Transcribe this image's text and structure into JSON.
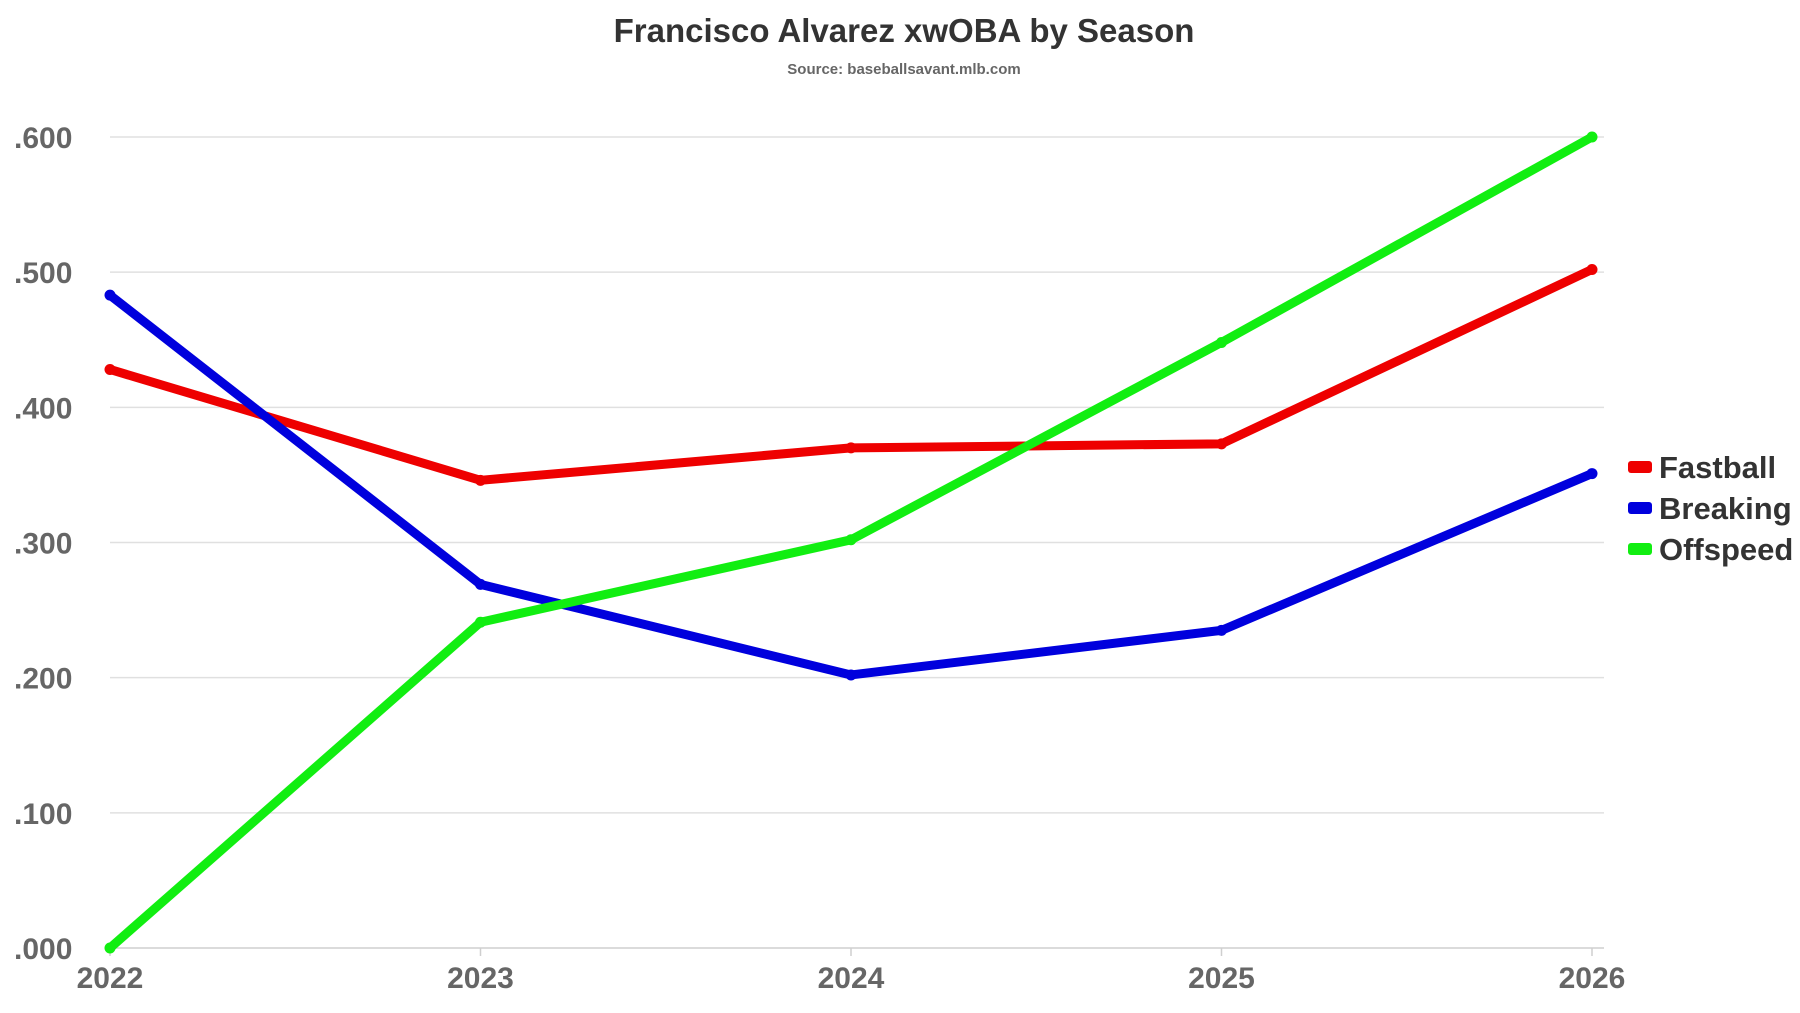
{
  "chart_data": {
    "type": "line",
    "title": "Francisco Alvarez xwOBA by Season",
    "subtitle": "Source: baseballsavant.mlb.com",
    "xlabel": "",
    "ylabel": "",
    "categories": [
      "2022",
      "2023",
      "2024",
      "2025",
      "2026"
    ],
    "ylim": [
      0,
      0.6
    ],
    "yticks": [
      0,
      0.1,
      0.2,
      0.3,
      0.4,
      0.5,
      0.6
    ],
    "ytick_labels": [
      ".000",
      ".100",
      ".200",
      ".300",
      ".400",
      ".500",
      ".600"
    ],
    "grid": true,
    "legend_position": "right",
    "series": [
      {
        "name": "Fastball",
        "color": "#ee0000",
        "values": [
          0.428,
          0.346,
          0.37,
          0.373,
          0.502
        ]
      },
      {
        "name": "Breaking",
        "color": "#0000dd",
        "values": [
          0.483,
          0.269,
          0.202,
          0.235,
          0.351
        ]
      },
      {
        "name": "Offspeed",
        "color": "#11ee11",
        "values": [
          0.0,
          0.241,
          0.302,
          0.448,
          0.6
        ]
      }
    ]
  }
}
